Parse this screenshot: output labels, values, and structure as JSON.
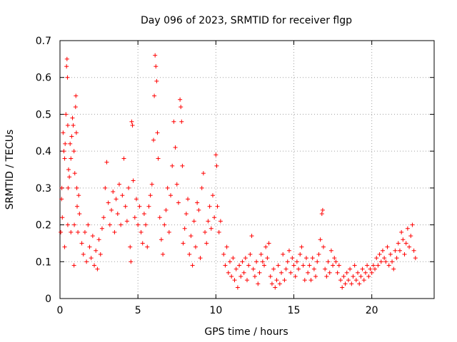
{
  "chart_data": {
    "type": "scatter",
    "title": "Day 096 of 2023, SRMTID for receiver flgp",
    "xlabel": "GPS time / hours",
    "ylabel": "SRMTID / TECUs",
    "xlim": [
      0,
      24
    ],
    "ylim": [
      0,
      0.7
    ],
    "x_ticks": [
      0,
      5,
      10,
      15,
      20
    ],
    "x_tick_labels": [
      "0",
      "5",
      "10",
      "15",
      "20"
    ],
    "y_ticks": [
      0,
      0.1,
      0.2,
      0.3,
      0.4,
      0.5,
      0.6,
      0.7
    ],
    "y_tick_labels": [
      "0",
      "0.1",
      "0.2",
      "0.3",
      "0.4",
      "0.5",
      "0.6",
      "0.7"
    ],
    "grid": true,
    "marker": "plus",
    "color": "#ff0000",
    "series": [
      {
        "name": "SRMTID",
        "points": [
          [
            0.05,
            0.18
          ],
          [
            0.1,
            0.27
          ],
          [
            0.12,
            0.3
          ],
          [
            0.15,
            0.22
          ],
          [
            0.2,
            0.45
          ],
          [
            0.25,
            0.4
          ],
          [
            0.3,
            0.38
          ],
          [
            0.33,
            0.42
          ],
          [
            0.38,
            0.5
          ],
          [
            0.42,
            0.63
          ],
          [
            0.45,
            0.65
          ],
          [
            0.48,
            0.6
          ],
          [
            0.5,
            0.47
          ],
          [
            0.52,
            0.3
          ],
          [
            0.55,
            0.35
          ],
          [
            0.6,
            0.33
          ],
          [
            0.65,
            0.42
          ],
          [
            0.7,
            0.38
          ],
          [
            0.75,
            0.44
          ],
          [
            0.8,
            0.49
          ],
          [
            0.85,
            0.47
          ],
          [
            0.9,
            0.4
          ],
          [
            0.92,
            0.2
          ],
          [
            0.95,
            0.34
          ],
          [
            1.0,
            0.52
          ],
          [
            1.02,
            0.55
          ],
          [
            1.05,
            0.45
          ],
          [
            1.08,
            0.3
          ],
          [
            1.1,
            0.25
          ],
          [
            1.15,
            0.18
          ],
          [
            1.2,
            0.28
          ],
          [
            1.25,
            0.23
          ],
          [
            0.3,
            0.14
          ],
          [
            0.5,
            0.2
          ],
          [
            0.7,
            0.18
          ],
          [
            0.9,
            0.09
          ],
          [
            1.4,
            0.15
          ],
          [
            1.5,
            0.12
          ],
          [
            1.6,
            0.18
          ],
          [
            1.7,
            0.1
          ],
          [
            1.8,
            0.2
          ],
          [
            1.9,
            0.14
          ],
          [
            2.0,
            0.11
          ],
          [
            2.1,
            0.17
          ],
          [
            2.2,
            0.09
          ],
          [
            2.3,
            0.13
          ],
          [
            2.4,
            0.08
          ],
          [
            2.5,
            0.16
          ],
          [
            2.6,
            0.12
          ],
          [
            2.7,
            0.19
          ],
          [
            2.8,
            0.22
          ],
          [
            2.9,
            0.3
          ],
          [
            3.0,
            0.37
          ],
          [
            3.1,
            0.26
          ],
          [
            3.2,
            0.2
          ],
          [
            3.3,
            0.24
          ],
          [
            3.4,
            0.29
          ],
          [
            3.5,
            0.18
          ],
          [
            3.6,
            0.27
          ],
          [
            3.7,
            0.23
          ],
          [
            3.8,
            0.31
          ],
          [
            3.9,
            0.2
          ],
          [
            4.0,
            0.28
          ],
          [
            4.1,
            0.38
          ],
          [
            4.2,
            0.25
          ],
          [
            4.3,
            0.21
          ],
          [
            4.4,
            0.3
          ],
          [
            4.5,
            0.14
          ],
          [
            4.55,
            0.1
          ],
          [
            4.6,
            0.48
          ],
          [
            4.65,
            0.47
          ],
          [
            4.7,
            0.32
          ],
          [
            4.8,
            0.22
          ],
          [
            4.9,
            0.27
          ],
          [
            5.0,
            0.2
          ],
          [
            5.1,
            0.25
          ],
          [
            5.2,
            0.18
          ],
          [
            5.3,
            0.15
          ],
          [
            5.4,
            0.23
          ],
          [
            5.5,
            0.2
          ],
          [
            5.6,
            0.14
          ],
          [
            5.7,
            0.25
          ],
          [
            5.8,
            0.28
          ],
          [
            5.9,
            0.31
          ],
          [
            6.0,
            0.43
          ],
          [
            6.05,
            0.55
          ],
          [
            6.1,
            0.66
          ],
          [
            6.15,
            0.63
          ],
          [
            6.2,
            0.59
          ],
          [
            6.25,
            0.45
          ],
          [
            6.3,
            0.38
          ],
          [
            6.4,
            0.22
          ],
          [
            6.5,
            0.16
          ],
          [
            6.6,
            0.12
          ],
          [
            6.7,
            0.2
          ],
          [
            6.8,
            0.24
          ],
          [
            6.9,
            0.3
          ],
          [
            7.0,
            0.18
          ],
          [
            7.1,
            0.28
          ],
          [
            7.2,
            0.36
          ],
          [
            7.3,
            0.48
          ],
          [
            7.4,
            0.41
          ],
          [
            7.5,
            0.31
          ],
          [
            7.6,
            0.26
          ],
          [
            7.7,
            0.54
          ],
          [
            7.75,
            0.52
          ],
          [
            7.8,
            0.48
          ],
          [
            7.85,
            0.36
          ],
          [
            7.9,
            0.15
          ],
          [
            8.0,
            0.19
          ],
          [
            8.1,
            0.23
          ],
          [
            8.2,
            0.27
          ],
          [
            8.3,
            0.12
          ],
          [
            8.4,
            0.17
          ],
          [
            8.5,
            0.09
          ],
          [
            8.6,
            0.21
          ],
          [
            8.7,
            0.14
          ],
          [
            8.8,
            0.26
          ],
          [
            8.9,
            0.24
          ],
          [
            9.0,
            0.11
          ],
          [
            9.1,
            0.3
          ],
          [
            9.2,
            0.34
          ],
          [
            9.3,
            0.18
          ],
          [
            9.4,
            0.15
          ],
          [
            9.5,
            0.21
          ],
          [
            9.6,
            0.25
          ],
          [
            9.7,
            0.19
          ],
          [
            9.8,
            0.28
          ],
          [
            9.9,
            0.22
          ],
          [
            10.0,
            0.39
          ],
          [
            10.05,
            0.36
          ],
          [
            10.1,
            0.25
          ],
          [
            10.2,
            0.18
          ],
          [
            10.3,
            0.21
          ],
          [
            10.5,
            0.12
          ],
          [
            10.6,
            0.09
          ],
          [
            10.7,
            0.14
          ],
          [
            10.8,
            0.07
          ],
          [
            10.9,
            0.1
          ],
          [
            11.0,
            0.06
          ],
          [
            11.1,
            0.11
          ],
          [
            11.2,
            0.05
          ],
          [
            11.3,
            0.08
          ],
          [
            11.4,
            0.03
          ],
          [
            11.5,
            0.09
          ],
          [
            11.6,
            0.06
          ],
          [
            11.7,
            0.1
          ],
          [
            11.8,
            0.07
          ],
          [
            11.9,
            0.11
          ],
          [
            12.0,
            0.05
          ],
          [
            12.1,
            0.09
          ],
          [
            12.2,
            0.12
          ],
          [
            12.3,
            0.17
          ],
          [
            12.4,
            0.08
          ],
          [
            12.5,
            0.06
          ],
          [
            12.6,
            0.1
          ],
          [
            12.7,
            0.04
          ],
          [
            12.8,
            0.07
          ],
          [
            12.9,
            0.12
          ],
          [
            13.0,
            0.1
          ],
          [
            13.1,
            0.09
          ],
          [
            13.2,
            0.14
          ],
          [
            13.3,
            0.11
          ],
          [
            13.4,
            0.15
          ],
          [
            13.5,
            0.06
          ],
          [
            13.6,
            0.04
          ],
          [
            13.7,
            0.08
          ],
          [
            13.8,
            0.03
          ],
          [
            13.9,
            0.05
          ],
          [
            14.0,
            0.09
          ],
          [
            14.1,
            0.04
          ],
          [
            14.2,
            0.07
          ],
          [
            14.3,
            0.12
          ],
          [
            14.4,
            0.05
          ],
          [
            14.5,
            0.08
          ],
          [
            14.6,
            0.1
          ],
          [
            14.7,
            0.13
          ],
          [
            14.8,
            0.07
          ],
          [
            14.9,
            0.11
          ],
          [
            15.0,
            0.09
          ],
          [
            15.1,
            0.06
          ],
          [
            15.2,
            0.1
          ],
          [
            15.3,
            0.08
          ],
          [
            15.4,
            0.12
          ],
          [
            15.5,
            0.14
          ],
          [
            15.6,
            0.09
          ],
          [
            15.7,
            0.05
          ],
          [
            15.8,
            0.11
          ],
          [
            15.9,
            0.07
          ],
          [
            16.0,
            0.09
          ],
          [
            16.1,
            0.05
          ],
          [
            16.2,
            0.11
          ],
          [
            16.3,
            0.08
          ],
          [
            16.4,
            0.06
          ],
          [
            16.5,
            0.1
          ],
          [
            16.6,
            0.12
          ],
          [
            16.7,
            0.16
          ],
          [
            16.8,
            0.23
          ],
          [
            16.85,
            0.24
          ],
          [
            16.9,
            0.14
          ],
          [
            17.0,
            0.08
          ],
          [
            17.1,
            0.06
          ],
          [
            17.2,
            0.1
          ],
          [
            17.3,
            0.07
          ],
          [
            17.4,
            0.13
          ],
          [
            17.5,
            0.09
          ],
          [
            17.6,
            0.11
          ],
          [
            17.7,
            0.1
          ],
          [
            17.8,
            0.07
          ],
          [
            17.9,
            0.09
          ],
          [
            18.0,
            0.05
          ],
          [
            18.1,
            0.03
          ],
          [
            18.2,
            0.06
          ],
          [
            18.3,
            0.04
          ],
          [
            18.4,
            0.07
          ],
          [
            18.5,
            0.05
          ],
          [
            18.6,
            0.08
          ],
          [
            18.7,
            0.04
          ],
          [
            18.8,
            0.06
          ],
          [
            18.9,
            0.09
          ],
          [
            19.0,
            0.05
          ],
          [
            19.1,
            0.07
          ],
          [
            19.2,
            0.04
          ],
          [
            19.3,
            0.06
          ],
          [
            19.4,
            0.08
          ],
          [
            19.5,
            0.05
          ],
          [
            19.6,
            0.07
          ],
          [
            19.7,
            0.09
          ],
          [
            19.8,
            0.06
          ],
          [
            19.9,
            0.08
          ],
          [
            20.0,
            0.07
          ],
          [
            20.1,
            0.09
          ],
          [
            20.2,
            0.08
          ],
          [
            20.3,
            0.11
          ],
          [
            20.4,
            0.09
          ],
          [
            20.5,
            0.12
          ],
          [
            20.6,
            0.1
          ],
          [
            20.7,
            0.13
          ],
          [
            20.8,
            0.11
          ],
          [
            20.9,
            0.1
          ],
          [
            21.0,
            0.14
          ],
          [
            21.1,
            0.09
          ],
          [
            21.2,
            0.12
          ],
          [
            21.3,
            0.1
          ],
          [
            21.4,
            0.08
          ],
          [
            21.5,
            0.13
          ],
          [
            21.6,
            0.11
          ],
          [
            21.7,
            0.15
          ],
          [
            21.8,
            0.13
          ],
          [
            21.9,
            0.18
          ],
          [
            22.0,
            0.16
          ],
          [
            22.1,
            0.12
          ],
          [
            22.2,
            0.15
          ],
          [
            22.3,
            0.19
          ],
          [
            22.4,
            0.14
          ],
          [
            22.5,
            0.17
          ],
          [
            22.6,
            0.2
          ],
          [
            22.7,
            0.13
          ],
          [
            22.8,
            0.11
          ]
        ]
      }
    ]
  }
}
